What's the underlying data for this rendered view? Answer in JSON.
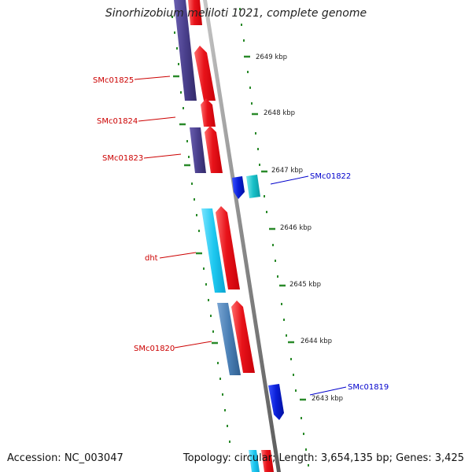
{
  "title": "Sinorhizobium meliloti 1021, complete genome",
  "footer": {
    "accession": "Accession: NC_003047",
    "summary": "Topology: circular; Length: 3,654,135 bp; Genes: 3,425"
  },
  "colors": {
    "forward_cds": "#e8131a",
    "reverse_navy": "#4a3f8c",
    "reverse_cyan": "#1ec8f0",
    "reverse_steel": "#4a7fb5",
    "plus_blue": "#0a1fd8",
    "plus_teal": "#18c0c8",
    "backbone": "#8a8a8a",
    "tick": "#2a8a2a",
    "label_red": "#cc0000",
    "label_blue": "#0000cc"
  },
  "kbp_labels": [
    "2649 kbp",
    "2648 kbp",
    "2647 kbp",
    "2646 kbp",
    "2645 kbp",
    "2644 kbp",
    "2643 kbp"
  ],
  "gene_labels_left": [
    "SMc01825",
    "SMc01824",
    "SMc01823",
    "dht",
    "SMc01820"
  ],
  "gene_labels_right": [
    "SMc01822",
    "SMc01819"
  ]
}
